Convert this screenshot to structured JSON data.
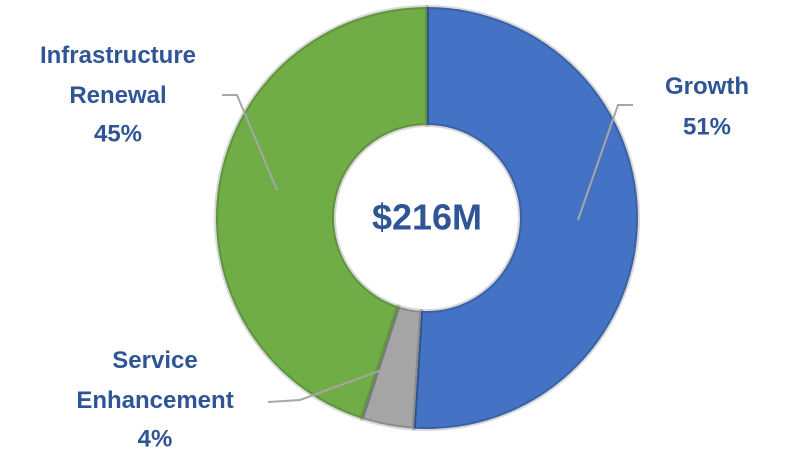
{
  "chart_data": {
    "type": "donut",
    "center_label": "$216M",
    "categories": [
      "Growth",
      "Service Enhancement",
      "Infrastructure Renewal"
    ],
    "values": [
      51,
      4,
      45
    ],
    "value_labels": [
      "51%",
      "4%",
      "45%"
    ],
    "colors": [
      "#4472c4",
      "#a5a5a5",
      "#70ad47"
    ]
  }
}
